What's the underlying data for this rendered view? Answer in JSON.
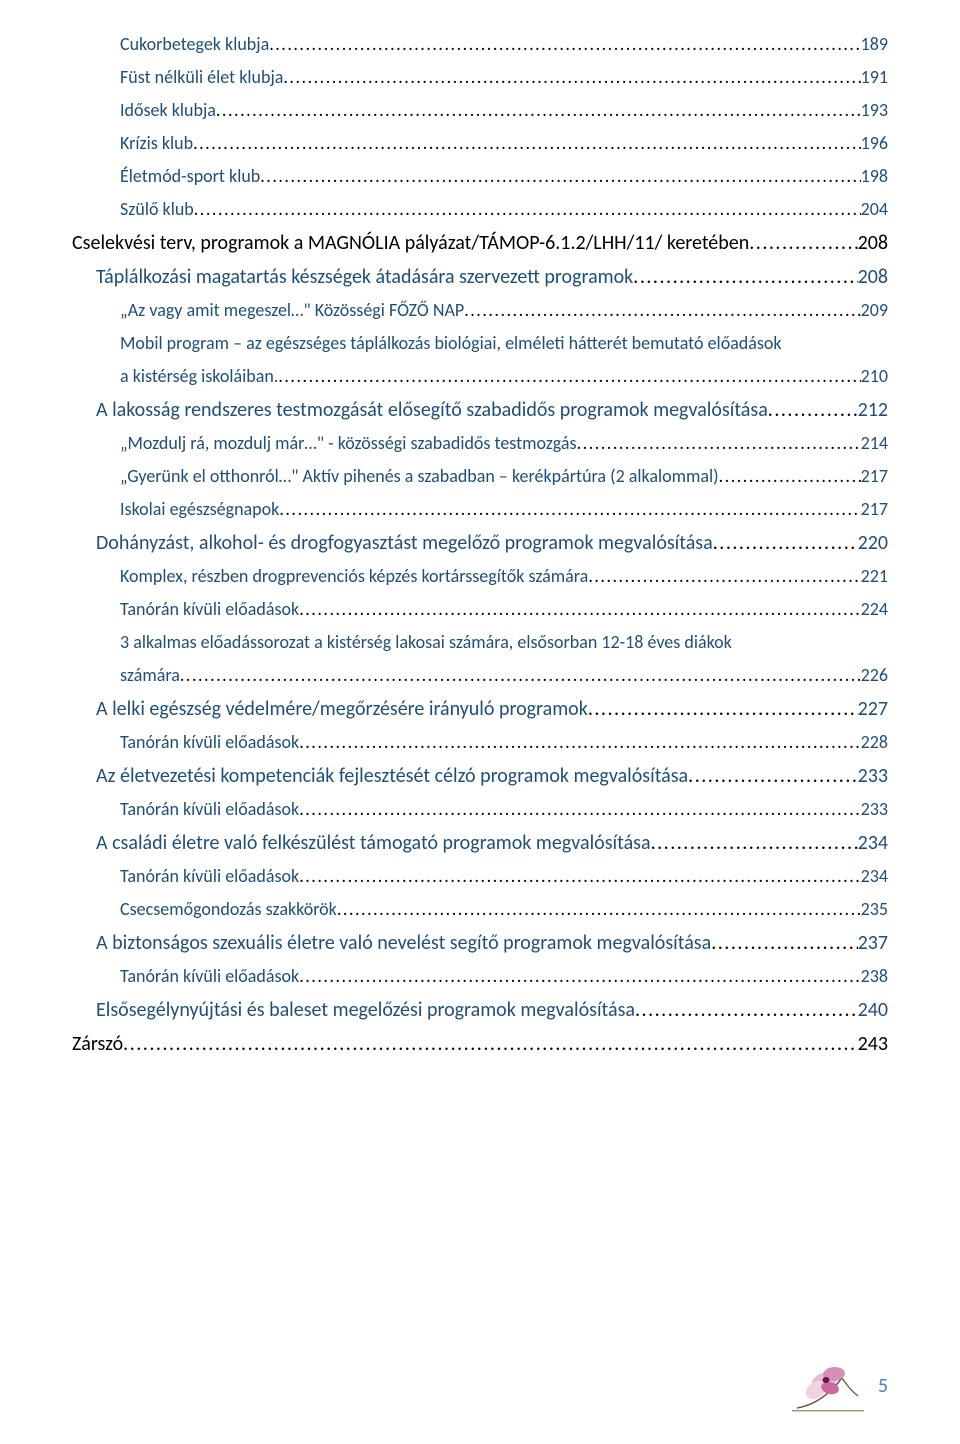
{
  "toc": [
    {
      "title": "Cukorbetegek klubja",
      "page": "189",
      "indent": 2,
      "cls": "c-small"
    },
    {
      "title": "Füst nélküli élet klubja",
      "page": "191",
      "indent": 2,
      "cls": "c-small"
    },
    {
      "title": "Idősek klubja",
      "page": "193",
      "indent": 2,
      "cls": "c-small"
    },
    {
      "title": "Krízis klub",
      "page": "196",
      "indent": 2,
      "cls": "c-small"
    },
    {
      "title": "Életmód-sport klub",
      "page": "198",
      "indent": 2,
      "cls": "c-small"
    },
    {
      "title": "Szülő klub",
      "page": "204",
      "indent": 2,
      "cls": "c-small"
    },
    {
      "title": "Cselekvési terv, programok a MAGNÓLIA pályázat/TÁMOP-6.1.2/LHH/11/ keretében",
      "page": "208",
      "indent": 0,
      "cls": "c-base"
    },
    {
      "title": "Táplálkozási magatartás készségek átadására szervezett programok",
      "page": "208",
      "indent": 1,
      "cls": "c-blue"
    },
    {
      "title": "„Az vagy amit megeszel…\" Közösségi FŐZŐ NAP",
      "page": "209",
      "indent": 2,
      "cls": "c-small"
    },
    {
      "title": "Mobil program – az egészséges táplálkozás biológiai, elméleti hátterét bemutató előadások a kistérség iskoláiban.",
      "page": "210",
      "indent": 2,
      "cls": "c-small"
    },
    {
      "title": "A lakosság rendszeres testmozgását elősegítő szabadidős programok megvalósítása",
      "page": "212",
      "indent": 1,
      "cls": "c-blue"
    },
    {
      "title": "„Mozdulj rá, mozdulj már…\" - közösségi szabadidős testmozgás",
      "page": "214",
      "indent": 2,
      "cls": "c-small"
    },
    {
      "title": "„Gyerünk el otthonról…\" Aktív pihenés a szabadban – kerékpártúra (2 alkalommal)",
      "page": "217",
      "indent": 2,
      "cls": "c-small"
    },
    {
      "title": "Iskolai egészségnapok",
      "page": "217",
      "indent": 2,
      "cls": "c-small"
    },
    {
      "title": "Dohányzást, alkohol- és drogfogyasztást megelőző programok megvalósítása",
      "page": "220",
      "indent": 1,
      "cls": "c-blue"
    },
    {
      "title": "Komplex, részben drogprevenciós képzés kortárssegítők számára",
      "page": "221",
      "indent": 2,
      "cls": "c-small"
    },
    {
      "title": "Tanórán kívüli előadások",
      "page": "224",
      "indent": 2,
      "cls": "c-small"
    },
    {
      "title": "3 alkalmas előadássorozat a kistérség lakosai számára, elsősorban 12-18 éves diákok számára",
      "page": "226",
      "indent": 2,
      "cls": "c-small"
    },
    {
      "title": "A lelki egészség védelmére/megőrzésére irányuló programok",
      "page": "227",
      "indent": 1,
      "cls": "c-blue"
    },
    {
      "title": "Tanórán kívüli előadások",
      "page": "228",
      "indent": 2,
      "cls": "c-small"
    },
    {
      "title": "Az életvezetési kompetenciák fejlesztését célzó programok megvalósítása",
      "page": "233",
      "indent": 1,
      "cls": "c-blue"
    },
    {
      "title": "Tanórán kívüli előadások",
      "page": "233",
      "indent": 2,
      "cls": "c-small"
    },
    {
      "title": "A családi életre való felkészülést támogató programok megvalósítása",
      "page": "234",
      "indent": 1,
      "cls": "c-blue"
    },
    {
      "title": "Tanórán kívüli előadások",
      "page": "234",
      "indent": 2,
      "cls": "c-small"
    },
    {
      "title": "Csecsemőgondozás szakkörök",
      "page": "235",
      "indent": 2,
      "cls": "c-small"
    },
    {
      "title": "A biztonságos szexuális életre való nevelést segítő programok megvalósítása",
      "page": "237",
      "indent": 1,
      "cls": "c-blue"
    },
    {
      "title": "Tanórán kívüli előadások",
      "page": "238",
      "indent": 2,
      "cls": "c-small"
    },
    {
      "title": "Elsősegélynyújtási és baleset megelőzési programok megvalósítása",
      "page": "240",
      "indent": 1,
      "cls": "c-blue"
    },
    {
      "title": "Zárszó",
      "page": "243",
      "indent": 0,
      "cls": "c-base"
    }
  ],
  "footer": {
    "page": "5"
  },
  "colors": {
    "base": "#000000",
    "heading_blue": "#1f4e79",
    "page_num": "#4f81bd",
    "background": "#ffffff"
  }
}
